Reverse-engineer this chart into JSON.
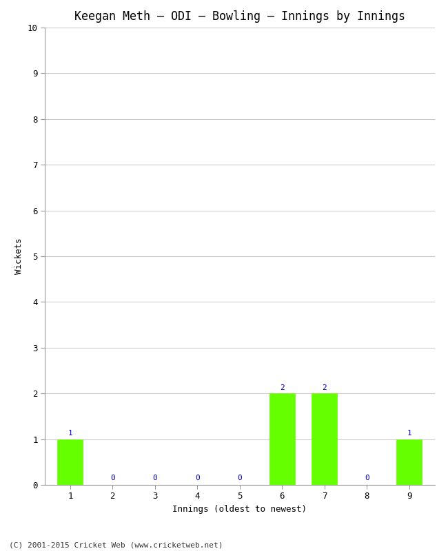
{
  "title": "Keegan Meth – ODI – Bowling – Innings by Innings",
  "xlabel": "Innings (oldest to newest)",
  "ylabel": "Wickets",
  "categories": [
    "1",
    "2",
    "3",
    "4",
    "5",
    "6",
    "7",
    "8",
    "9"
  ],
  "values": [
    1,
    0,
    0,
    0,
    0,
    2,
    2,
    0,
    1
  ],
  "bar_color": "#66ff00",
  "label_color": "#0000cc",
  "ylim": [
    0,
    10
  ],
  "yticks": [
    0,
    1,
    2,
    3,
    4,
    5,
    6,
    7,
    8,
    9,
    10
  ],
  "background_color": "#ffffff",
  "plot_bg_color": "#ffffff",
  "title_fontsize": 12,
  "axis_label_fontsize": 9,
  "tick_fontsize": 9,
  "label_fontsize": 8,
  "footer": "(C) 2001-2015 Cricket Web (www.cricketweb.net)",
  "footer_fontsize": 8
}
